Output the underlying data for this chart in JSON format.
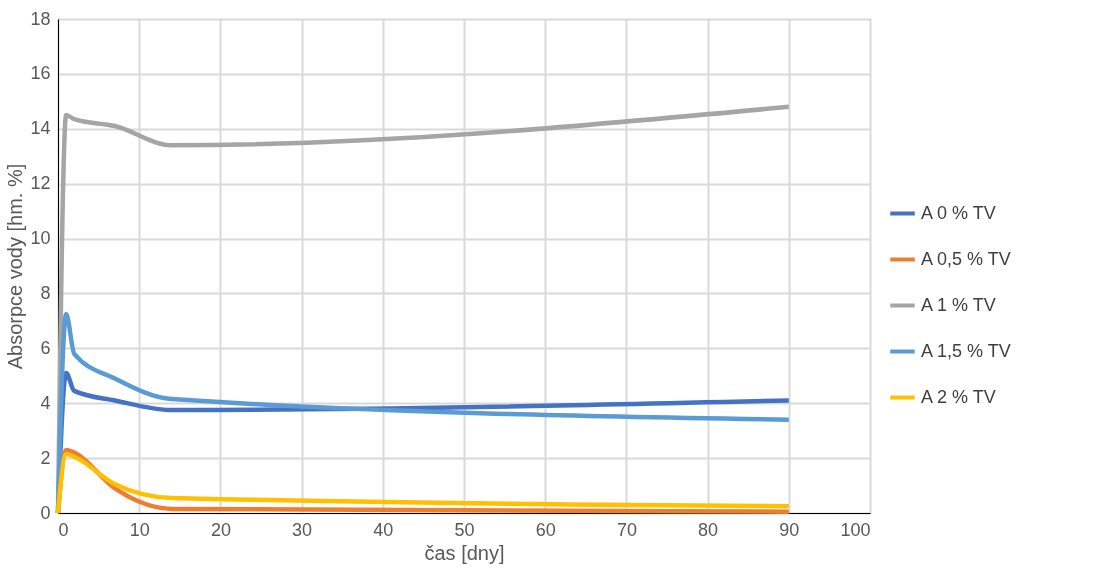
{
  "chart_data": {
    "type": "line",
    "xlabel": "čas [dny]",
    "ylabel": "Absorpce vody [hm. %]",
    "x": [
      0,
      1,
      2,
      7,
      14,
      90
    ],
    "series": [
      {
        "name": "A 0 % TV",
        "color": "#4472c4",
        "values": [
          0,
          5.1,
          4.45,
          4.1,
          3.75,
          4.1
        ]
      },
      {
        "name": "A 0,5 % TV",
        "color": "#ed7d31",
        "values": [
          0,
          2.3,
          2.2,
          0.9,
          0.15,
          0.05
        ]
      },
      {
        "name": "A 1 % TV",
        "color": "#a5a5a5",
        "values": [
          0,
          14.5,
          14.35,
          14.1,
          13.4,
          14.8
        ]
      },
      {
        "name": "A 1,5 % TV",
        "color": "#5b9bd5",
        "values": [
          0,
          7.25,
          5.8,
          4.9,
          4.15,
          3.4
        ]
      },
      {
        "name": "A 2 % TV",
        "color": "#ffc000",
        "values": [
          0,
          2.15,
          2.05,
          1.05,
          0.55,
          0.25
        ]
      }
    ],
    "xlim": [
      0,
      100
    ],
    "xticks": [
      0,
      10,
      20,
      30,
      40,
      50,
      60,
      70,
      80,
      90,
      100
    ],
    "ylim": [
      0,
      18
    ],
    "yticks": [
      0,
      2,
      4,
      6,
      8,
      10,
      12,
      14,
      16,
      18
    ],
    "grid": true,
    "legend": "right",
    "marker": "none",
    "line_style": "solid"
  }
}
